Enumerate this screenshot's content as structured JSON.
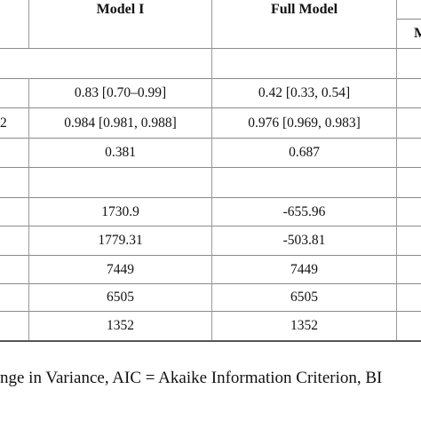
{
  "header": {
    "col_model1": "Model I",
    "col_full": "Full Model",
    "subheader_partial": "M"
  },
  "rows": [
    {
      "label": "",
      "model1": "",
      "full": ""
    },
    {
      "label": "",
      "model1": "0.83 [0.70–0.99]",
      "full": "0.42 [0.33, 0.54]"
    },
    {
      "label": "2",
      "model1": "0.984 [0.981, 0.988]",
      "full": "0.976 [0.969, 0.983]"
    },
    {
      "label": "",
      "model1": "0.381",
      "full": "0.687"
    },
    {
      "label": "",
      "model1": "",
      "full": ""
    },
    {
      "label": "",
      "model1": "1730.9",
      "full": "-655.96"
    },
    {
      "label": "",
      "model1": "1779.31",
      "full": "-503.81"
    },
    {
      "label": "",
      "model1": "7449",
      "full": "7449"
    },
    {
      "label": "",
      "model1": "6505",
      "full": "6505"
    },
    {
      "label": "",
      "model1": "1352",
      "full": "1352"
    }
  ],
  "footnote": "nge in Variance, AIC = Akaike Information Criterion, BI"
}
